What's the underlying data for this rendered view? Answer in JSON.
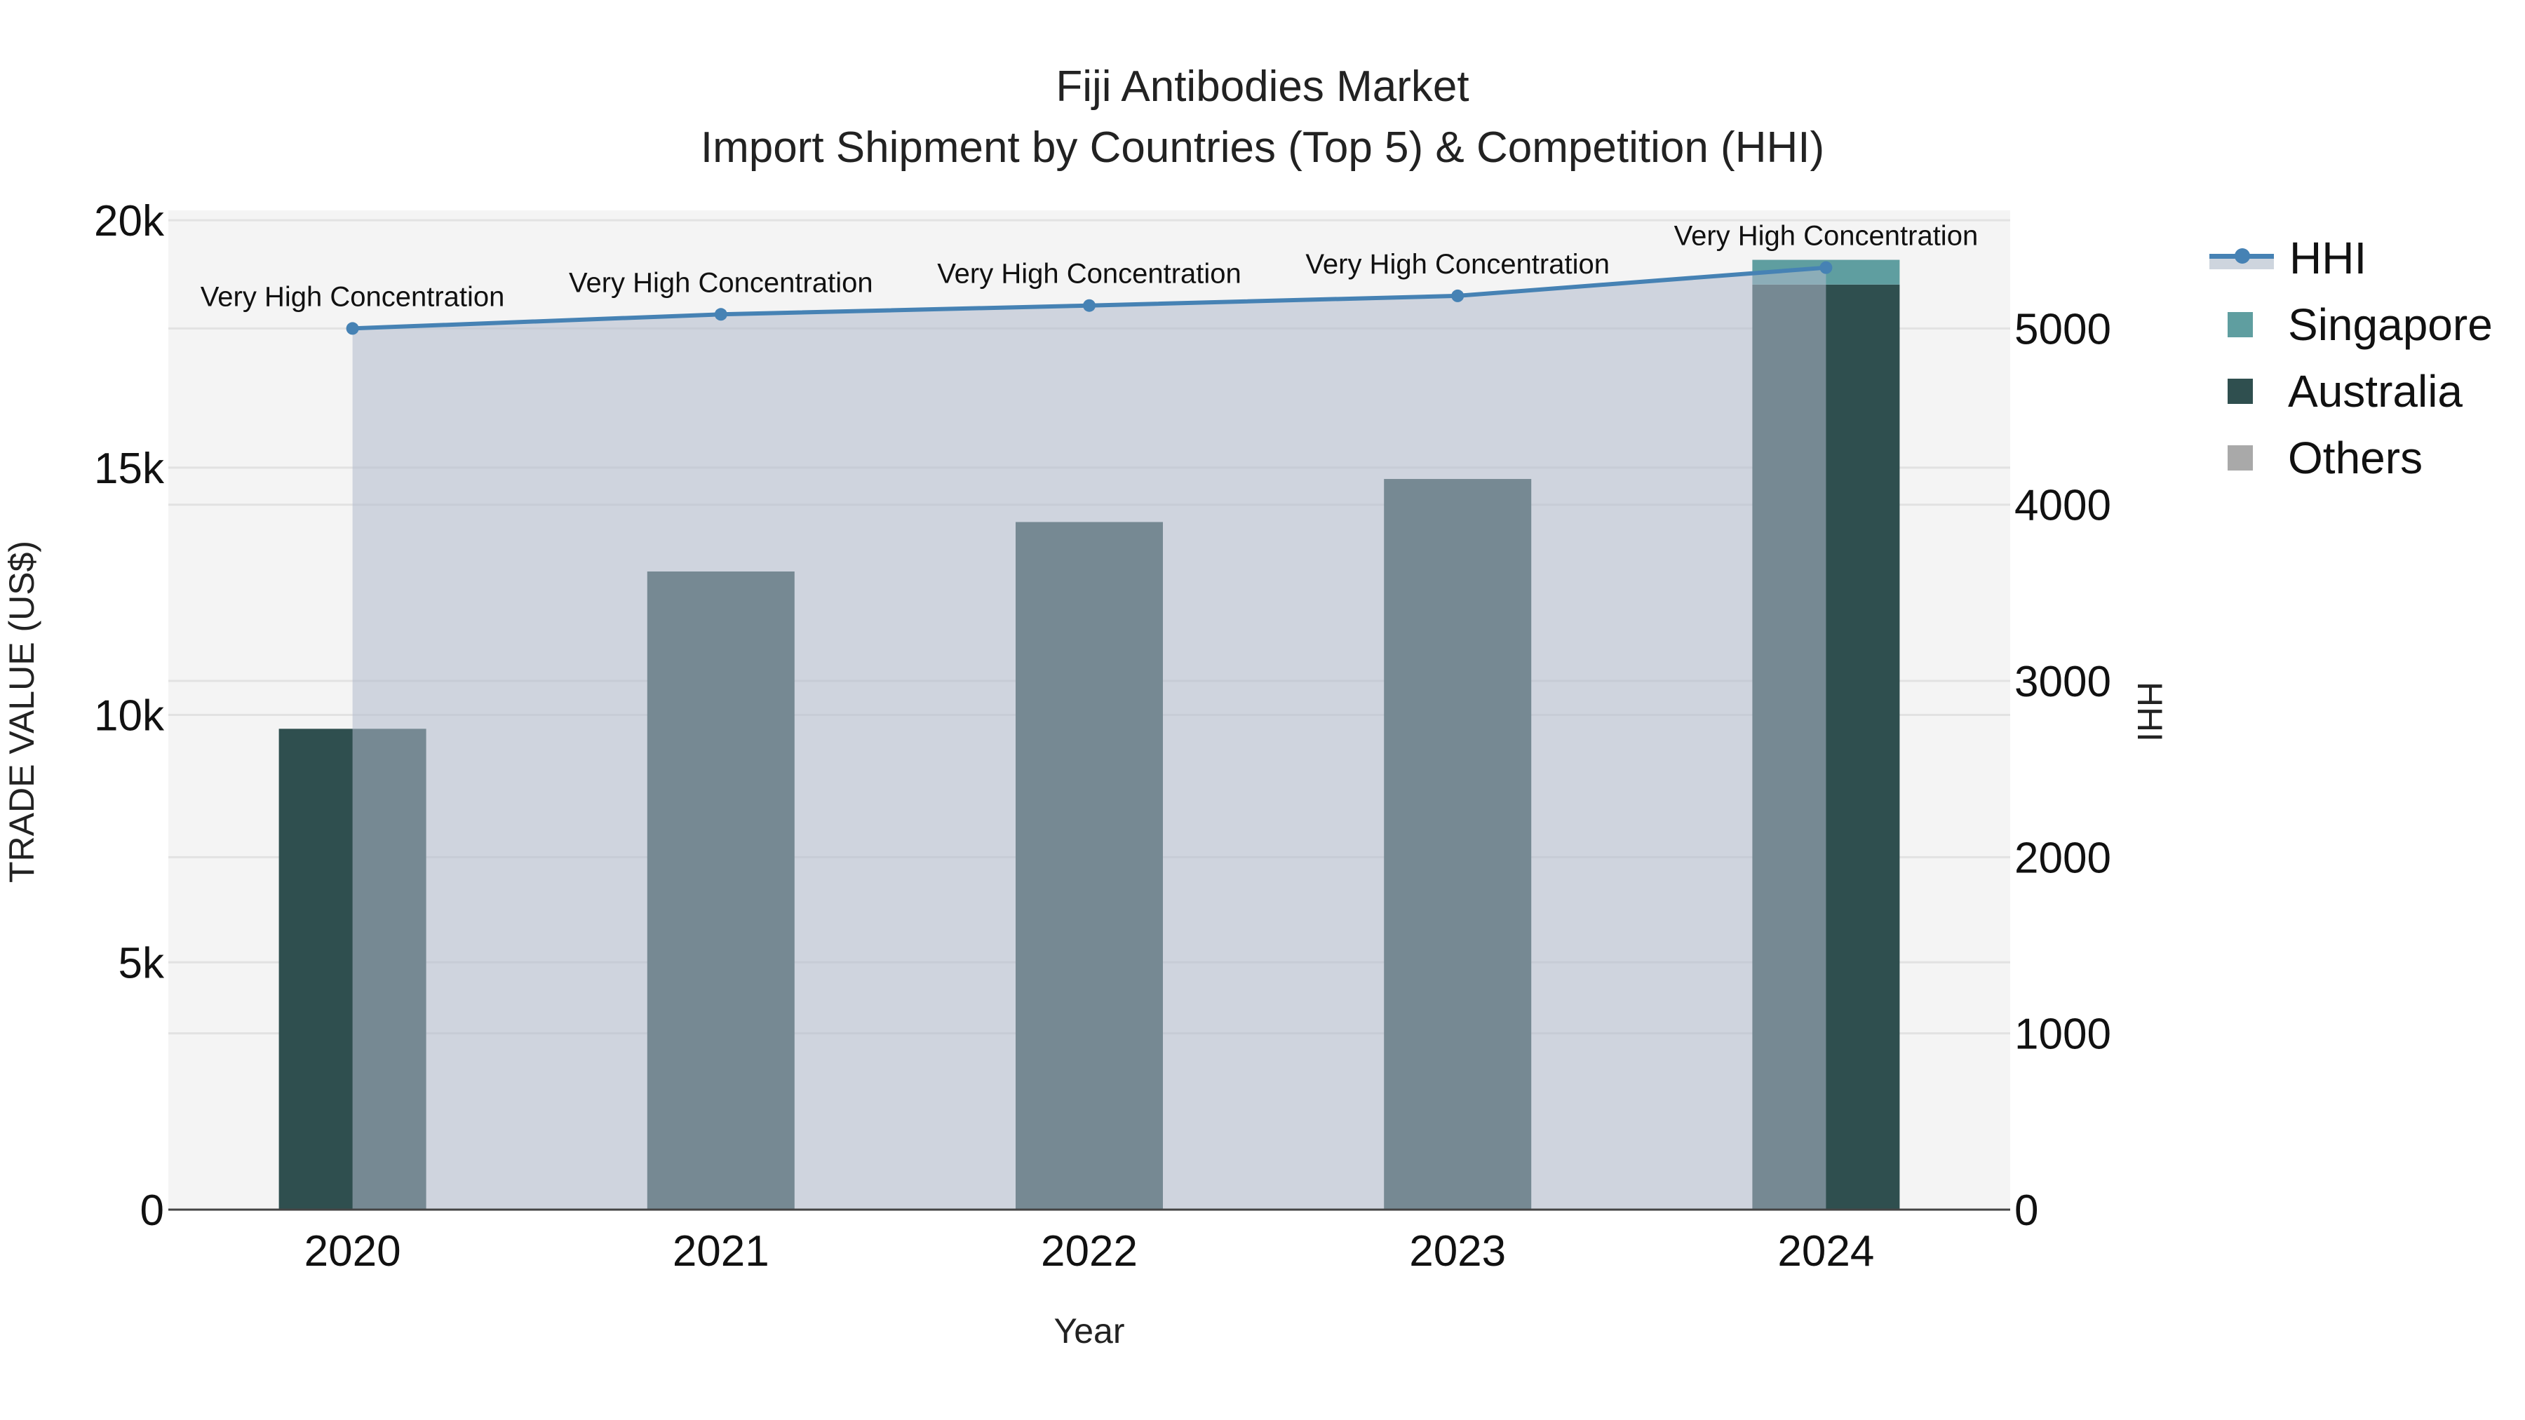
{
  "title": {
    "line1": "Fiji Antibodies Market",
    "line2": "Import Shipment by Countries (Top 5) & Competition (HHI)"
  },
  "axes": {
    "x_title": "Year",
    "y_left_title": "TRADE VALUE (US$)",
    "y_right_title": "HHI",
    "y_left_ticks": [
      "0",
      "5k",
      "10k",
      "15k",
      "20k"
    ],
    "y_right_ticks": [
      "0",
      "1000",
      "2000",
      "3000",
      "4000",
      "5000"
    ]
  },
  "legend": [
    {
      "name": "HHI",
      "type": "line",
      "color": "#4682b4"
    },
    {
      "name": "Singapore",
      "type": "bar",
      "color": "#5f9ea0"
    },
    {
      "name": "Australia",
      "type": "bar",
      "color": "#2f4f4f"
    },
    {
      "name": "Others",
      "type": "bar",
      "color": "#a9a9a9"
    }
  ],
  "colors": {
    "plot_bg": "#f4f4f4",
    "grid": "#e2e2e2",
    "hhi_line": "#4682b4",
    "hhi_fill": "rgba(176,186,204,0.55)",
    "australia": "#2f4f4f",
    "singapore": "#5f9ea0",
    "others": "#a9a9a9"
  },
  "chart_data": {
    "type": "bar",
    "title": "Fiji Antibodies Market — Import Shipment by Countries (Top 5) & Competition (HHI)",
    "xlabel": "Year",
    "ylabel": "TRADE VALUE (US$)",
    "y2label": "HHI",
    "categories": [
      "2020",
      "2021",
      "2022",
      "2023",
      "2024"
    ],
    "ylim": [
      0,
      20200
    ],
    "y2lim": [
      0,
      5670
    ],
    "barmode": "stack",
    "series": [
      {
        "name": "Australia",
        "axis": "y",
        "type": "bar",
        "values": [
          9720,
          12900,
          13900,
          14770,
          18700
        ]
      },
      {
        "name": "Singapore",
        "axis": "y",
        "type": "bar",
        "values": [
          0,
          0,
          0,
          0,
          500
        ]
      },
      {
        "name": "Others",
        "axis": "y",
        "type": "bar",
        "values": [
          0,
          0,
          0,
          0,
          0
        ]
      },
      {
        "name": "HHI",
        "axis": "y2",
        "type": "line+area",
        "values": [
          5000,
          5080,
          5130,
          5185,
          5345
        ]
      }
    ],
    "annotations": [
      "Very High Concentration",
      "Very High Concentration",
      "Very High Concentration",
      "Very High Concentration",
      "Very High Concentration"
    ],
    "grid": true,
    "legend_position": "right-top"
  }
}
